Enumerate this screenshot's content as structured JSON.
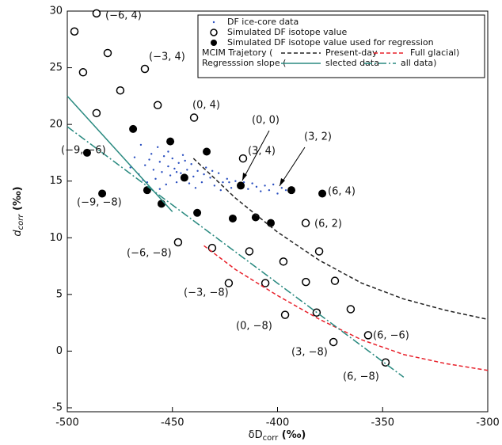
{
  "chart_data": {
    "type": "scatter",
    "x_label": {
      "main": "δD",
      "sub": "corr",
      "unit": " (‰)"
    },
    "y_label": {
      "main": "d",
      "sub": "corr",
      "unit": " (‰)"
    },
    "xlim": [
      -500,
      -300
    ],
    "xticks": [
      -500,
      -450,
      -400,
      -350,
      -300
    ],
    "ylim": [
      -5.35,
      30
    ],
    "yticks": [
      -5,
      0,
      5,
      10,
      15,
      20,
      25,
      30
    ],
    "legend_groups": [
      "MCIM Trajetory (",
      "Regresssion slope ("
    ],
    "series": [
      {
        "name": "DF ice-core data",
        "style": "dot",
        "color": "#2a4fc0",
        "x": [
          -470,
          -468,
          -466,
          -465,
          -463,
          -462,
          -460,
          -459,
          -458,
          -457,
          -456,
          -455,
          -454,
          -453,
          -452,
          -451,
          -450,
          -449,
          -448,
          -447,
          -446,
          -445,
          -444,
          -443,
          -442,
          -441,
          -440,
          -438,
          -436,
          -434,
          -432,
          -430,
          -428,
          -426,
          -424,
          -422,
          -420,
          -418,
          -416,
          -414,
          -412,
          -410,
          -408,
          -406,
          -404,
          -402,
          -400,
          -398,
          -396,
          -464,
          -461,
          -456,
          -452,
          -448,
          -444,
          -439,
          -435,
          -431,
          -427,
          -423
        ],
        "y": [
          16.2,
          17.1,
          15.6,
          18.2,
          16.4,
          14.9,
          17.4,
          16.0,
          15.2,
          18.0,
          16.7,
          15.8,
          17.2,
          14.7,
          16.3,
          15.5,
          17.0,
          16.1,
          14.9,
          16.6,
          15.7,
          17.3,
          15.2,
          16.0,
          14.8,
          16.5,
          15.4,
          15.9,
          14.9,
          16.2,
          15.3,
          14.6,
          15.7,
          14.9,
          15.2,
          14.4,
          15.0,
          14.6,
          14.9,
          14.3,
          14.8,
          14.5,
          14.1,
          14.6,
          14.2,
          14.7,
          13.9,
          14.4,
          14.2,
          15.1,
          16.9,
          14.3,
          17.6,
          15.8,
          16.8,
          14.4,
          15.6,
          15.9,
          14.2,
          14.9
        ]
      },
      {
        "name": "Simulated DF isotope value",
        "style": "open",
        "color": "#000000",
        "x": [
          -496.6,
          -486.1,
          -492.5,
          -480.8,
          -463.1,
          -486.1,
          -474.8,
          -457.0,
          -439.7,
          -416.4,
          -447.3,
          -431.1,
          -413.4,
          -423.2,
          -405.8,
          -396.4,
          -386.5,
          -397.2,
          -386.6,
          -380.2,
          -372.7,
          -381.4,
          -373.4,
          -365.2,
          -356.9,
          -348.6
        ],
        "y": [
          28.2,
          29.8,
          24.6,
          26.3,
          24.9,
          21.0,
          23.0,
          21.7,
          20.6,
          17.0,
          9.6,
          9.1,
          8.8,
          6.0,
          6.0,
          3.2,
          6.1,
          7.9,
          11.3,
          8.8,
          6.2,
          3.4,
          0.8,
          3.7,
          1.4,
          -1.0
        ]
      },
      {
        "name": "Simulated DF isotope value used for regression",
        "style": "filled",
        "color": "#000000",
        "x": [
          -468.7,
          -451.0,
          -433.7,
          -490.6,
          -483.4,
          -462.0,
          -444.3,
          -417.5,
          -410.4,
          -438.2,
          -455.2,
          -421.3,
          -403.2,
          -393.4,
          -378.7
        ],
        "y": [
          19.6,
          18.5,
          17.6,
          17.5,
          13.9,
          14.2,
          15.3,
          14.6,
          11.8,
          12.2,
          13.0,
          11.7,
          11.3,
          14.2,
          13.9
        ]
      },
      {
        "name": "Present-day",
        "style": "line",
        "dash": "5,3",
        "color": "#222222",
        "group": 0,
        "x": [
          -440,
          -420,
          -400,
          -380,
          -360,
          -340,
          -320,
          -300
        ],
        "y": [
          17.0,
          13.5,
          10.5,
          8.0,
          6.0,
          4.6,
          3.6,
          2.8
        ]
      },
      {
        "name": "Full glacial)",
        "style": "line",
        "dash": "5,3",
        "color": "#e8202a",
        "group": 0,
        "x": [
          -435,
          -420,
          -400,
          -380,
          -360,
          -340,
          -320,
          -300
        ],
        "y": [
          9.3,
          7.2,
          4.9,
          2.8,
          1.0,
          -0.3,
          -1.1,
          -1.7
        ]
      },
      {
        "name": "slected data",
        "style": "line",
        "dash": "",
        "color": "#2a8a80",
        "group": 1,
        "x": [
          -500,
          -450
        ],
        "y": [
          22.5,
          12.3
        ]
      },
      {
        "name": "all data)",
        "style": "line",
        "dash": "10,3,2,3",
        "color": "#2a8a80",
        "group": 1,
        "x": [
          -500,
          -340
        ],
        "y": [
          19.8,
          -2.3
        ]
      }
    ],
    "annotations": [
      "(−6, 4)",
      "(−3, 4)",
      "(0, 4)",
      "(0, 0)",
      "(3, 4)",
      "(3, 2)",
      "(−9, −6)",
      "(−9, −8)",
      "(6, 4)",
      "(6, 2)",
      "(−6, −8)",
      "(−3, −8)",
      "(0, −8)",
      "(3, −8)",
      "(6, −6)",
      "(6, −8)"
    ]
  }
}
